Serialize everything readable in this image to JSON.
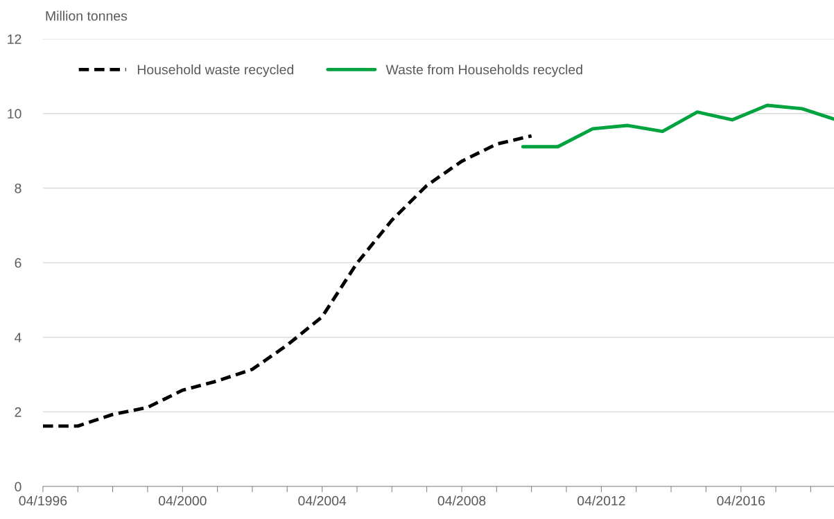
{
  "chart_data": {
    "type": "line",
    "ylabel": "Million tonnes",
    "series": [
      {
        "name": "Household waste recycled",
        "color": "#000000",
        "line_style": "dashed",
        "x": [
          "1996-04",
          "1997-04",
          "1998-04",
          "1999-04",
          "2000-04",
          "2001-04",
          "2002-04",
          "2003-04",
          "2004-04",
          "2005-04",
          "2006-04",
          "2007-04",
          "2008-04",
          "2009-04",
          "2010-04"
        ],
        "values": [
          1.62,
          1.62,
          1.93,
          2.12,
          2.58,
          2.83,
          3.14,
          3.79,
          4.55,
          5.99,
          7.14,
          8.07,
          8.72,
          9.18,
          9.4
        ]
      },
      {
        "name": "Waste from Households recycled",
        "color": "#00a33e",
        "line_style": "solid",
        "x": [
          "2010-01",
          "2011-01",
          "2012-01",
          "2013-01",
          "2014-01",
          "2015-01",
          "2016-01",
          "2017-01",
          "2018-01",
          "2018-12"
        ],
        "values": [
          9.11,
          9.11,
          9.59,
          9.68,
          9.52,
          10.04,
          9.83,
          10.22,
          10.13,
          9.85
        ]
      }
    ],
    "xlim": [
      "1996-04",
      "2018-12"
    ],
    "xticks": [
      {
        "value": "1996-04",
        "label": "04/1996"
      },
      {
        "value": "1997-04",
        "label": null
      },
      {
        "value": "1998-04",
        "label": null
      },
      {
        "value": "1999-04",
        "label": null
      },
      {
        "value": "2000-04",
        "label": "04/2000"
      },
      {
        "value": "2001-04",
        "label": null
      },
      {
        "value": "2002-04",
        "label": null
      },
      {
        "value": "2003-04",
        "label": null
      },
      {
        "value": "2004-04",
        "label": "04/2004"
      },
      {
        "value": "2005-04",
        "label": null
      },
      {
        "value": "2006-04",
        "label": null
      },
      {
        "value": "2007-04",
        "label": null
      },
      {
        "value": "2008-04",
        "label": "04/2008"
      },
      {
        "value": "2009-04",
        "label": null
      },
      {
        "value": "2010-04",
        "label": null
      },
      {
        "value": "2011-04",
        "label": null
      },
      {
        "value": "2012-04",
        "label": "04/2012"
      },
      {
        "value": "2013-04",
        "label": null
      },
      {
        "value": "2014-04",
        "label": null
      },
      {
        "value": "2015-04",
        "label": null
      },
      {
        "value": "2016-04",
        "label": "04/2016"
      },
      {
        "value": "2017-04",
        "label": null
      },
      {
        "value": "2018-04",
        "label": null
      }
    ],
    "ylim": [
      0,
      12
    ],
    "yticks": [
      0,
      2,
      4,
      6,
      8,
      10,
      12
    ],
    "grid": "y",
    "legend": "top left",
    "marker": "none"
  }
}
